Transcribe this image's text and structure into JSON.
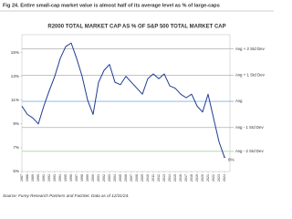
{
  "chart_data": {
    "type": "line",
    "figure_caption": "Fig 24.  Entire small-cap market value is almost half of its average level as % of large-caps",
    "title": "R2000 TOTAL MARKET CAP AS % OF S&P 500 TOTAL MARKET CAP",
    "source": "Source: Furey Research Partners and FactSet.  Data as of 12/31/24.",
    "x": [
      1987,
      1988,
      1989,
      1990,
      1991,
      1992,
      1993,
      1994,
      1995,
      1996,
      1997,
      1998,
      1999,
      2000,
      2001,
      2002,
      2003,
      2004,
      2005,
      2006,
      2007,
      2008,
      2009,
      2010,
      2011,
      2012,
      2013,
      2014,
      2015,
      2016,
      2017,
      2018,
      2019,
      2020,
      2021,
      2022,
      2023,
      2024
    ],
    "series": [
      {
        "name": "R2000 / S&P 500",
        "color": "#1f3a93",
        "values": [
          10.5,
          9.8,
          9.5,
          9.0,
          10.5,
          11.8,
          13.0,
          14.5,
          15.5,
          15.8,
          14.5,
          13.0,
          11.0,
          9.8,
          12.5,
          13.5,
          14.0,
          12.5,
          12.3,
          13.0,
          12.5,
          12.0,
          11.5,
          12.8,
          13.2,
          12.8,
          13.2,
          12.2,
          12.0,
          11.5,
          11.2,
          11.5,
          10.5,
          10.0,
          11.5,
          9.5,
          7.5,
          6.2
        ]
      }
    ],
    "xlim": [
      1987,
      2025
    ],
    "xticks": [
      1987,
      1988,
      1989,
      1990,
      1991,
      1992,
      1993,
      1994,
      1995,
      1996,
      1997,
      1998,
      1999,
      2000,
      2001,
      2002,
      2003,
      2004,
      2005,
      2006,
      2007,
      2008,
      2009,
      2010,
      2011,
      2012,
      2013,
      2014,
      2015,
      2016,
      2017,
      2018,
      2019,
      2020,
      2021,
      2022,
      2023,
      2024
    ],
    "ylim": [
      5,
      16.5
    ],
    "yticks": [
      {
        "value": 5,
        "label": "5%"
      },
      {
        "value": 7,
        "label": "7%"
      },
      {
        "value": 9,
        "label": "9%"
      },
      {
        "value": 11,
        "label": "11%"
      },
      {
        "value": 13,
        "label": "13%"
      },
      {
        "value": 15,
        "label": "15%"
      }
    ],
    "reference_lines": [
      {
        "label": "Avg + 2 Std Dev",
        "value": 15.3,
        "color": "#b0b0b0"
      },
      {
        "label": "Avg + 1 Std Dev",
        "value": 13.1,
        "color": "#b0b0b0"
      },
      {
        "label": "Avg",
        "value": 10.9,
        "color": "#7fb3e0"
      },
      {
        "label": "Avg - 1 Std Dev",
        "value": 8.7,
        "color": "#b0b0b0"
      },
      {
        "label": "Avg - 2 Std Dev",
        "value": 6.7,
        "color": "#a8d5a8"
      }
    ],
    "annotations": [
      {
        "text": "6%",
        "x": 2024,
        "y": 6.2
      }
    ]
  }
}
